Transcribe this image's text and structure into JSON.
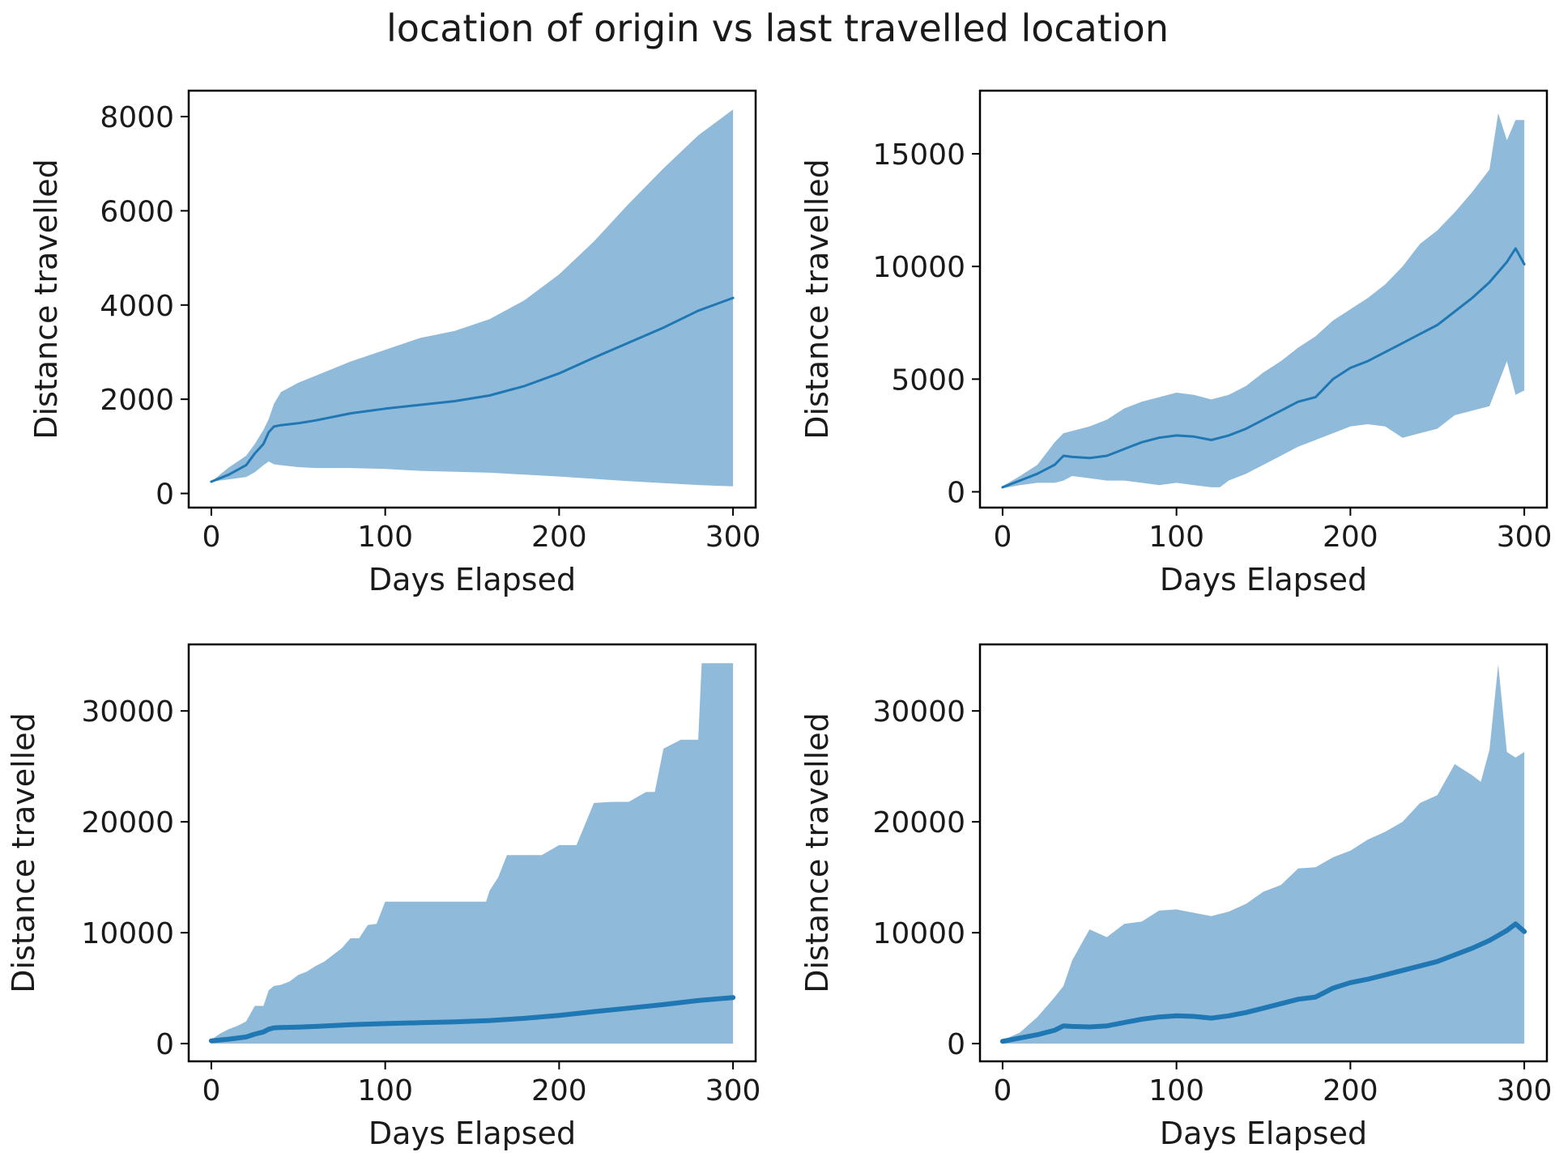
{
  "figure": {
    "title": "location of origin vs last travelled location"
  },
  "colors": {
    "band": "#8fbad9",
    "line": "#1f77b4",
    "axis": "#000000"
  },
  "chart_data": [
    {
      "type": "line",
      "panel": "top-left",
      "xlabel": "Days Elapsed",
      "ylabel": "Distance travelled",
      "xlim": [
        -13,
        313
      ],
      "ylim": [
        -300,
        8550
      ],
      "xticks": [
        0,
        100,
        200,
        300
      ],
      "yticks": [
        0,
        2000,
        4000,
        6000,
        8000
      ],
      "line_width": "thin",
      "series": [
        {
          "role": "mean",
          "x": [
            0,
            10,
            20,
            25,
            30,
            33,
            36,
            40,
            50,
            60,
            80,
            100,
            120,
            140,
            160,
            180,
            200,
            220,
            240,
            260,
            280,
            300
          ],
          "y": [
            250,
            400,
            600,
            850,
            1050,
            1300,
            1420,
            1450,
            1490,
            1550,
            1700,
            1800,
            1880,
            1960,
            2080,
            2280,
            2550,
            2880,
            3200,
            3520,
            3880,
            4150
          ]
        },
        {
          "role": "upper",
          "x": [
            0,
            10,
            20,
            25,
            30,
            33,
            36,
            40,
            50,
            60,
            80,
            100,
            120,
            140,
            160,
            180,
            200,
            220,
            240,
            260,
            280,
            300
          ],
          "y": [
            250,
            550,
            800,
            1050,
            1350,
            1580,
            1900,
            2150,
            2350,
            2500,
            2800,
            3050,
            3300,
            3450,
            3700,
            4100,
            4650,
            5350,
            6150,
            6900,
            7600,
            8150
          ]
        },
        {
          "role": "lower",
          "x": [
            0,
            10,
            20,
            25,
            30,
            33,
            36,
            40,
            50,
            60,
            80,
            100,
            120,
            140,
            160,
            180,
            200,
            220,
            240,
            260,
            280,
            300
          ],
          "y": [
            250,
            300,
            350,
            450,
            600,
            680,
            620,
            600,
            560,
            540,
            540,
            520,
            480,
            460,
            440,
            400,
            360,
            310,
            260,
            220,
            180,
            150
          ]
        }
      ]
    },
    {
      "type": "line",
      "panel": "top-right",
      "xlabel": "Days Elapsed",
      "ylabel": "Distance travelled",
      "xlim": [
        -13,
        313
      ],
      "ylim": [
        -700,
        17800
      ],
      "xticks": [
        0,
        100,
        200,
        300
      ],
      "yticks": [
        0,
        5000,
        10000,
        15000
      ],
      "line_width": "thin",
      "series": [
        {
          "role": "mean",
          "x": [
            0,
            10,
            20,
            30,
            35,
            40,
            50,
            60,
            70,
            80,
            90,
            100,
            110,
            120,
            130,
            140,
            150,
            160,
            170,
            180,
            190,
            200,
            210,
            220,
            230,
            240,
            250,
            260,
            270,
            280,
            290,
            295,
            300
          ],
          "y": [
            200,
            500,
            800,
            1200,
            1600,
            1550,
            1500,
            1600,
            1900,
            2200,
            2400,
            2500,
            2450,
            2300,
            2500,
            2800,
            3200,
            3600,
            4000,
            4200,
            5000,
            5500,
            5800,
            6200,
            6600,
            7000,
            7400,
            8000,
            8600,
            9300,
            10200,
            10800,
            10100
          ]
        },
        {
          "role": "upper",
          "x": [
            0,
            10,
            20,
            30,
            35,
            40,
            50,
            60,
            70,
            80,
            90,
            100,
            110,
            120,
            130,
            140,
            150,
            160,
            170,
            180,
            190,
            200,
            210,
            220,
            230,
            240,
            250,
            260,
            270,
            280,
            285,
            290,
            295,
            300
          ],
          "y": [
            250,
            700,
            1200,
            2200,
            2600,
            2700,
            2900,
            3200,
            3700,
            4000,
            4200,
            4400,
            4300,
            4100,
            4300,
            4700,
            5300,
            5800,
            6400,
            6900,
            7600,
            8100,
            8600,
            9200,
            10000,
            11000,
            11600,
            12400,
            13300,
            14300,
            16800,
            15600,
            16500,
            16500
          ]
        },
        {
          "role": "lower",
          "x": [
            0,
            10,
            20,
            30,
            35,
            40,
            50,
            60,
            70,
            80,
            90,
            100,
            110,
            120,
            125,
            130,
            140,
            150,
            160,
            170,
            180,
            190,
            200,
            210,
            220,
            230,
            240,
            250,
            260,
            270,
            280,
            285,
            290,
            295,
            300
          ],
          "y": [
            150,
            300,
            400,
            400,
            500,
            700,
            600,
            500,
            500,
            400,
            300,
            400,
            300,
            200,
            200,
            500,
            800,
            1200,
            1600,
            2000,
            2300,
            2600,
            2900,
            3000,
            2900,
            2400,
            2600,
            2800,
            3400,
            3600,
            3800,
            4800,
            5800,
            4300,
            4500
          ]
        }
      ]
    },
    {
      "type": "line",
      "panel": "bottom-left",
      "xlabel": "Days Elapsed",
      "ylabel": "Distance travelled",
      "xlim": [
        -13,
        313
      ],
      "ylim": [
        -1600,
        36000
      ],
      "xticks": [
        0,
        100,
        200,
        300
      ],
      "yticks": [
        0,
        10000,
        20000,
        30000
      ],
      "line_width": "thick",
      "series": [
        {
          "role": "mean",
          "x": [
            0,
            10,
            20,
            25,
            30,
            33,
            36,
            40,
            50,
            60,
            80,
            100,
            120,
            140,
            160,
            180,
            200,
            220,
            240,
            260,
            280,
            300
          ],
          "y": [
            250,
            400,
            600,
            850,
            1050,
            1300,
            1420,
            1450,
            1490,
            1550,
            1700,
            1800,
            1880,
            1960,
            2080,
            2280,
            2550,
            2880,
            3200,
            3520,
            3880,
            4150
          ]
        },
        {
          "role": "upper",
          "x": [
            0,
            5,
            10,
            15,
            20,
            25,
            30,
            33,
            36,
            40,
            45,
            50,
            55,
            60,
            65,
            70,
            75,
            80,
            85,
            90,
            95,
            100,
            110,
            120,
            130,
            140,
            150,
            158,
            160,
            165,
            170,
            180,
            190,
            200,
            210,
            220,
            230,
            240,
            250,
            255,
            260,
            270,
            280,
            282,
            290,
            300
          ],
          "y": [
            350,
            900,
            1300,
            1600,
            2000,
            3400,
            3400,
            4800,
            5200,
            5300,
            5600,
            6200,
            6500,
            7000,
            7400,
            8000,
            8600,
            9500,
            9500,
            10700,
            10800,
            12800,
            12800,
            12800,
            12800,
            12800,
            12800,
            12800,
            13800,
            15000,
            17000,
            17000,
            17000,
            17900,
            17900,
            21700,
            21800,
            21800,
            22700,
            22700,
            26600,
            27400,
            27400,
            34300,
            34300,
            34300
          ]
        },
        {
          "role": "lower",
          "x": [
            0,
            300
          ],
          "y": [
            0,
            0
          ]
        }
      ]
    },
    {
      "type": "line",
      "panel": "bottom-right",
      "xlabel": "Days Elapsed",
      "ylabel": "Distance travelled",
      "xlim": [
        -13,
        313
      ],
      "ylim": [
        -1600,
        36000
      ],
      "xticks": [
        0,
        100,
        200,
        300
      ],
      "yticks": [
        0,
        10000,
        20000,
        30000
      ],
      "line_width": "thick",
      "series": [
        {
          "role": "mean",
          "x": [
            0,
            10,
            20,
            30,
            35,
            40,
            50,
            60,
            70,
            80,
            90,
            100,
            110,
            120,
            130,
            140,
            150,
            160,
            170,
            180,
            190,
            200,
            210,
            220,
            230,
            240,
            250,
            260,
            270,
            280,
            290,
            295,
            300
          ],
          "y": [
            200,
            500,
            800,
            1200,
            1600,
            1550,
            1500,
            1600,
            1900,
            2200,
            2400,
            2500,
            2450,
            2300,
            2500,
            2800,
            3200,
            3600,
            4000,
            4200,
            5000,
            5500,
            5800,
            6200,
            6600,
            7000,
            7400,
            8000,
            8600,
            9300,
            10200,
            10800,
            10100
          ]
        },
        {
          "role": "upper",
          "x": [
            0,
            10,
            20,
            30,
            35,
            40,
            50,
            60,
            70,
            80,
            90,
            100,
            110,
            120,
            130,
            140,
            150,
            160,
            170,
            180,
            190,
            200,
            210,
            220,
            230,
            240,
            250,
            260,
            270,
            275,
            280,
            285,
            290,
            295,
            300
          ],
          "y": [
            300,
            1000,
            2400,
            4200,
            5200,
            7500,
            10300,
            9600,
            10800,
            11000,
            12000,
            12100,
            11800,
            11500,
            11900,
            12600,
            13700,
            14300,
            15800,
            15900,
            16800,
            17400,
            18400,
            19100,
            20000,
            21700,
            22400,
            25200,
            24200,
            23600,
            26500,
            34200,
            26300,
            25800,
            26300
          ]
        },
        {
          "role": "lower",
          "x": [
            0,
            300
          ],
          "y": [
            0,
            0
          ]
        }
      ]
    }
  ]
}
